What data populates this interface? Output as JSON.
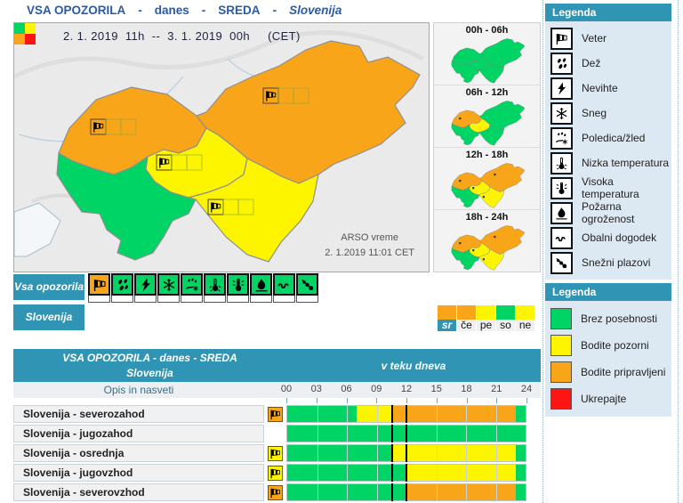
{
  "header": {
    "parts": [
      "VSA OPOZORILA",
      "danes",
      "SREDA",
      "Slovenija"
    ]
  },
  "colors": {
    "green": "#00d465",
    "yellow": "#fdf500",
    "orange": "#f9a51a",
    "red": "#ff1414",
    "teal": "#3095b5"
  },
  "map": {
    "period_label": "2. 1. 2019  11h  --  3. 1. 2019  00h     (CET)",
    "source_line1": "ARSO vreme",
    "source_line2": "2. 1.2019  11:01 CET",
    "regions": {
      "nw": "orange",
      "ne": "orange",
      "c": "yellow",
      "se": "yellow",
      "sw": "green"
    },
    "region_icons": {
      "nw": "wind-icon",
      "ne": "wind-icon",
      "c": "wind-icon",
      "se": "wind-icon"
    }
  },
  "mini_maps": [
    {
      "label": "00h - 06h",
      "regions": {
        "nw": "green",
        "ne": "green",
        "c": "green",
        "se": "green",
        "sw": "green"
      },
      "marks": []
    },
    {
      "label": "06h - 12h",
      "regions": {
        "nw": "orange",
        "ne": "green",
        "c": "yellow",
        "se": "green",
        "sw": "green"
      },
      "marks": [
        "nw"
      ]
    },
    {
      "label": "12h - 18h",
      "regions": {
        "nw": "orange",
        "ne": "orange",
        "c": "yellow",
        "se": "yellow",
        "sw": "green"
      },
      "marks": [
        "nw",
        "ne",
        "c",
        "se"
      ]
    },
    {
      "label": "18h - 24h",
      "regions": {
        "nw": "orange",
        "ne": "orange",
        "c": "yellow",
        "se": "yellow",
        "sw": "green"
      },
      "marks": [
        "nw",
        "ne",
        "c",
        "se"
      ]
    }
  ],
  "legend_types": {
    "title": "Legenda",
    "items": [
      {
        "icon": "wind-icon",
        "label": "Veter"
      },
      {
        "icon": "rain-icon",
        "label": "Dež"
      },
      {
        "icon": "storm-icon",
        "label": "Nevihte"
      },
      {
        "icon": "snow-icon",
        "label": "Sneg"
      },
      {
        "icon": "ice-icon",
        "label": "Poledica/žled"
      },
      {
        "icon": "low-temp-icon",
        "label": "Nizka temperatura"
      },
      {
        "icon": "high-temp-icon",
        "label": "Visoka temperatura"
      },
      {
        "icon": "fire-icon",
        "label": "Požarna ogroženost"
      },
      {
        "icon": "coastal-icon",
        "label": "Obalni dogodek"
      },
      {
        "icon": "avalanche-icon",
        "label": "Snežni plazovi"
      }
    ]
  },
  "legend_levels": {
    "title": "Legenda",
    "items": [
      {
        "color": "green",
        "label": "Brez posebnosti"
      },
      {
        "color": "yellow",
        "label": "Bodite pozorni"
      },
      {
        "color": "orange",
        "label": "Bodite pripravljeni"
      },
      {
        "color": "red",
        "label": "Ukrepajte"
      }
    ]
  },
  "all_warnings": {
    "label": "Vsa opozorila",
    "cells": [
      {
        "icon": "wind-icon",
        "level": "orange"
      },
      {
        "icon": "rain-icon",
        "level": "green"
      },
      {
        "icon": "storm-icon",
        "level": "green"
      },
      {
        "icon": "snow-icon",
        "level": "green"
      },
      {
        "icon": "ice-icon",
        "level": "green"
      },
      {
        "icon": "low-temp-icon",
        "level": "green"
      },
      {
        "icon": "high-temp-icon",
        "level": "green"
      },
      {
        "icon": "fire-icon",
        "level": "green"
      },
      {
        "icon": "coastal-icon",
        "level": "green"
      },
      {
        "icon": "avalanche-icon",
        "level": "green"
      }
    ]
  },
  "region_row": {
    "label": "Slovenija"
  },
  "day_selector": [
    {
      "label": "sr",
      "level": "orange",
      "selected": true
    },
    {
      "label": "če",
      "level": "orange",
      "selected": false
    },
    {
      "label": "pe",
      "level": "yellow",
      "selected": false
    },
    {
      "label": "so",
      "level": "green",
      "selected": false
    },
    {
      "label": "ne",
      "level": "yellow",
      "selected": false
    }
  ],
  "table": {
    "title_line1": "VSA OPOZORILA - danes - SREDA",
    "title_line2": "Slovenija",
    "title_right": "v teku dneva",
    "desc_header": "Opis in nasveti",
    "hours": [
      "00",
      "03",
      "06",
      "09",
      "12",
      "15",
      "18",
      "21",
      "24"
    ],
    "marker_hours": [
      10.45,
      11.9
    ],
    "rows": [
      {
        "label": "Slovenija - severozahod",
        "icon": "wind-icon",
        "icon_level": "orange",
        "segments": [
          {
            "from": 0,
            "to": 7,
            "level": "green"
          },
          {
            "from": 7,
            "to": 10.5,
            "level": "yellow"
          },
          {
            "from": 10.5,
            "to": 23,
            "level": "orange"
          },
          {
            "from": 23,
            "to": 24,
            "level": "green"
          }
        ]
      },
      {
        "label": "Slovenija - jugozahod",
        "icon": null,
        "icon_level": null,
        "segments": [
          {
            "from": 0,
            "to": 24,
            "level": "green"
          }
        ]
      },
      {
        "label": "Slovenija - osrednja",
        "icon": "wind-icon",
        "icon_level": "yellow",
        "segments": [
          {
            "from": 0,
            "to": 10.5,
            "level": "green"
          },
          {
            "from": 10.5,
            "to": 23,
            "level": "yellow"
          },
          {
            "from": 23,
            "to": 24,
            "level": "green"
          }
        ]
      },
      {
        "label": "Slovenija - jugovzhod",
        "icon": "wind-icon",
        "icon_level": "yellow",
        "segments": [
          {
            "from": 0,
            "to": 12,
            "level": "green"
          },
          {
            "from": 12,
            "to": 23,
            "level": "yellow"
          },
          {
            "from": 23,
            "to": 24,
            "level": "green"
          }
        ]
      },
      {
        "label": "Slovenija - severovzhod",
        "icon": "wind-icon",
        "icon_level": "orange",
        "segments": [
          {
            "from": 0,
            "to": 12,
            "level": "green"
          },
          {
            "from": 12,
            "to": 23,
            "level": "orange"
          },
          {
            "from": 23,
            "to": 24,
            "level": "green"
          }
        ]
      }
    ]
  }
}
